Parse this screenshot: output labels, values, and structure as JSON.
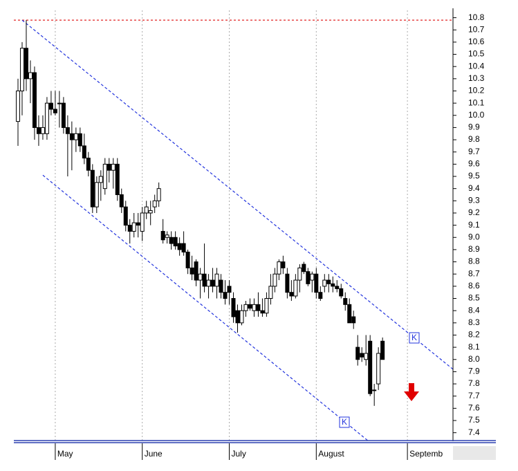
{
  "chart_data": {
    "type": "candlestick",
    "x": [
      1,
      2,
      3,
      4,
      5,
      6,
      7,
      8,
      9,
      10,
      11,
      12,
      13,
      14,
      15,
      16,
      17,
      18,
      19,
      20,
      21,
      22,
      23,
      24,
      25,
      26,
      27,
      28,
      29,
      30,
      31,
      32,
      33,
      34,
      35,
      36,
      37,
      38,
      39,
      40,
      41,
      42,
      43,
      44,
      45,
      46,
      47,
      48,
      49,
      50,
      51,
      52,
      53,
      54,
      55,
      56,
      57,
      58,
      59,
      60,
      61,
      62,
      63,
      64,
      65,
      66,
      67,
      68,
      69,
      70,
      71,
      72,
      73,
      74,
      75,
      76,
      77,
      78,
      79,
      80,
      81,
      82,
      83,
      84,
      85,
      86,
      87,
      88,
      89
    ],
    "open": [
      9.95,
      10.2,
      10.55,
      10.3,
      10.35,
      9.9,
      9.85,
      9.85,
      10.1,
      10.05,
      10.1,
      10.1,
      9.9,
      9.85,
      9.8,
      9.85,
      9.75,
      9.65,
      9.55,
      9.25,
      9.45,
      9.4,
      9.6,
      9.55,
      9.6,
      9.35,
      9.25,
      9.1,
      9.05,
      9.12,
      9.05,
      9.2,
      9.2,
      9.25,
      9.3,
      9.05,
      9.0,
      9.0,
      9.0,
      8.95,
      8.95,
      8.88,
      8.75,
      8.8,
      8.65,
      8.7,
      8.6,
      8.65,
      8.6,
      8.65,
      8.55,
      8.6,
      8.5,
      8.4,
      8.3,
      8.4,
      8.45,
      8.4,
      8.45,
      8.4,
      8.38,
      8.5,
      8.6,
      8.7,
      8.8,
      8.7,
      8.55,
      8.52,
      8.65,
      8.78,
      8.72,
      8.65,
      8.7,
      8.55,
      8.6,
      8.65,
      8.62,
      8.6,
      8.58,
      8.5,
      8.45,
      8.35,
      8.1,
      8.05,
      8.0,
      8.15,
      7.75,
      7.8,
      8.15
    ],
    "high": [
      10.3,
      10.6,
      10.78,
      10.45,
      10.4,
      10.0,
      10.0,
      10.15,
      10.2,
      10.2,
      10.2,
      10.15,
      10.0,
      9.95,
      9.9,
      9.9,
      9.85,
      9.7,
      9.6,
      9.5,
      9.55,
      9.65,
      9.65,
      9.65,
      9.65,
      9.4,
      9.3,
      9.15,
      9.2,
      9.2,
      9.25,
      9.3,
      9.3,
      9.35,
      9.45,
      9.15,
      9.05,
      9.05,
      9.05,
      9.0,
      9.05,
      8.9,
      8.85,
      8.82,
      8.75,
      8.95,
      8.7,
      8.75,
      8.75,
      8.7,
      8.65,
      8.65,
      8.55,
      8.45,
      8.45,
      8.48,
      8.5,
      8.5,
      8.55,
      8.5,
      8.55,
      8.7,
      8.75,
      8.82,
      8.85,
      8.75,
      8.65,
      8.7,
      8.78,
      8.8,
      8.75,
      8.72,
      8.75,
      8.6,
      8.7,
      8.7,
      8.68,
      8.65,
      8.62,
      8.55,
      8.5,
      8.4,
      8.2,
      8.1,
      8.2,
      8.2,
      7.8,
      8.1,
      8.18
    ],
    "low": [
      9.75,
      10.0,
      10.2,
      10.1,
      9.8,
      9.75,
      9.8,
      9.8,
      10.0,
      10.0,
      9.9,
      9.85,
      9.5,
      9.55,
      9.7,
      9.7,
      9.6,
      9.5,
      9.2,
      9.2,
      9.3,
      9.35,
      9.45,
      9.4,
      9.3,
      9.2,
      9.05,
      8.95,
      9.0,
      9.0,
      8.97,
      9.15,
      9.1,
      9.2,
      9.25,
      8.95,
      8.95,
      8.9,
      8.9,
      8.85,
      8.85,
      8.7,
      8.65,
      8.6,
      8.5,
      8.55,
      8.5,
      8.55,
      8.5,
      8.5,
      8.45,
      8.45,
      8.3,
      8.22,
      8.28,
      8.35,
      8.4,
      8.35,
      8.35,
      8.35,
      8.35,
      8.45,
      8.55,
      8.65,
      8.7,
      8.5,
      8.48,
      8.5,
      8.55,
      8.7,
      8.6,
      8.55,
      8.5,
      8.48,
      8.55,
      8.55,
      8.55,
      8.55,
      8.5,
      8.4,
      8.3,
      8.25,
      7.95,
      7.98,
      7.95,
      7.7,
      7.62,
      7.75,
      8.0
    ],
    "close": [
      10.2,
      10.55,
      10.3,
      10.35,
      9.9,
      9.85,
      9.9,
      10.1,
      10.05,
      10.02,
      10.1,
      9.9,
      9.85,
      9.8,
      9.85,
      9.75,
      9.65,
      9.55,
      9.25,
      9.45,
      9.5,
      9.6,
      9.55,
      9.6,
      9.35,
      9.25,
      9.1,
      9.05,
      9.12,
      9.1,
      9.2,
      9.25,
      9.22,
      9.3,
      9.4,
      8.98,
      9.02,
      8.95,
      8.93,
      8.9,
      8.88,
      8.75,
      8.7,
      8.65,
      8.7,
      8.6,
      8.65,
      8.6,
      8.7,
      8.55,
      8.5,
      8.55,
      8.35,
      8.3,
      8.4,
      8.45,
      8.42,
      8.45,
      8.4,
      8.38,
      8.5,
      8.6,
      8.7,
      8.8,
      8.75,
      8.55,
      8.52,
      8.65,
      8.75,
      8.72,
      8.62,
      8.7,
      8.55,
      8.5,
      8.65,
      8.62,
      8.6,
      8.58,
      8.52,
      8.45,
      8.3,
      8.3,
      8.0,
      8.02,
      8.05,
      7.72,
      7.75,
      8.05,
      8.0
    ],
    "xlim": [
      0,
      106
    ],
    "xticks": [
      {
        "value": 10,
        "label": "May"
      },
      {
        "value": 31,
        "label": "June"
      },
      {
        "value": 52,
        "label": "July"
      },
      {
        "value": 73,
        "label": "August"
      },
      {
        "value": 95,
        "label": "Septemb"
      }
    ],
    "ylim": [
      7.33,
      10.86
    ],
    "yticks": [
      7.4,
      7.5,
      7.6,
      7.7,
      7.8,
      7.9,
      {
        "value": 8,
        "label": "8.0"
      },
      8.1,
      8.2,
      8.3,
      8.4,
      8.5,
      8.6,
      8.7,
      8.8,
      8.9,
      {
        "value": 9,
        "label": "9.0"
      },
      9.1,
      9.2,
      9.3,
      9.4,
      9.5,
      9.6,
      9.7,
      9.8,
      9.9,
      {
        "value": 10,
        "label": "10.0"
      },
      10.1,
      10.2,
      10.3,
      10.4,
      10.5,
      10.6,
      10.7,
      10.8
    ],
    "reference_line": {
      "y": 10.78,
      "color": "#e02020"
    },
    "trendlines": [
      {
        "x": [
          2,
          106
        ],
        "y": [
          10.78,
          7.92
        ],
        "color": "#2233dd"
      },
      {
        "x": [
          7,
          86
        ],
        "y": [
          9.51,
          7.32
        ],
        "color": "#2233dd"
      }
    ],
    "annotations": [
      "K",
      "K"
    ],
    "up_color": "#ffffff",
    "down_color": "#000000"
  }
}
